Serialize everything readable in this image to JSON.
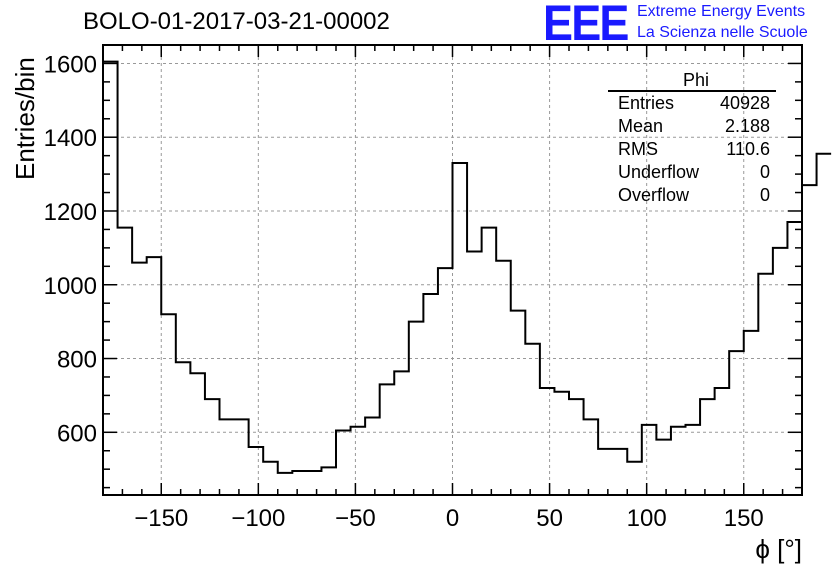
{
  "title": "BOLO-01-2017-03-21-00002",
  "logo": {
    "mark": "EEE",
    "line1": "Extreme Energy Events",
    "line2": "La Scienza nelle Scuole",
    "color": "#1a1aff"
  },
  "stats": {
    "title": "Phi",
    "rows": [
      {
        "label": "Entries",
        "value": "40928"
      },
      {
        "label": "Mean",
        "value": "2.188"
      },
      {
        "label": "RMS",
        "value": "110.6"
      },
      {
        "label": "Underflow",
        "value": "0"
      },
      {
        "label": "Overflow",
        "value": "0"
      }
    ]
  },
  "chart_data": {
    "type": "histogram",
    "title": "BOLO-01-2017-03-21-00002",
    "xlabel": "ϕ [°]",
    "ylabel": "Entries/bin",
    "xlim": [
      -180,
      180
    ],
    "ylim": [
      430,
      1650
    ],
    "bin_width": 7.5,
    "xticks": [
      -150,
      -100,
      -50,
      0,
      50,
      100,
      150
    ],
    "yticks": [
      600,
      800,
      1000,
      1200,
      1400,
      1600
    ],
    "grid": true,
    "values": [
      1605,
      1155,
      1060,
      1075,
      920,
      790,
      760,
      690,
      635,
      635,
      560,
      520,
      490,
      495,
      495,
      505,
      605,
      615,
      640,
      730,
      765,
      900,
      975,
      1045,
      1330,
      1090,
      1155,
      1065,
      930,
      840,
      720,
      710,
      690,
      635,
      555,
      555,
      520,
      620,
      580,
      615,
      620,
      690,
      720,
      820,
      875,
      1030,
      1100,
      1170,
      1270,
      1355
    ]
  }
}
